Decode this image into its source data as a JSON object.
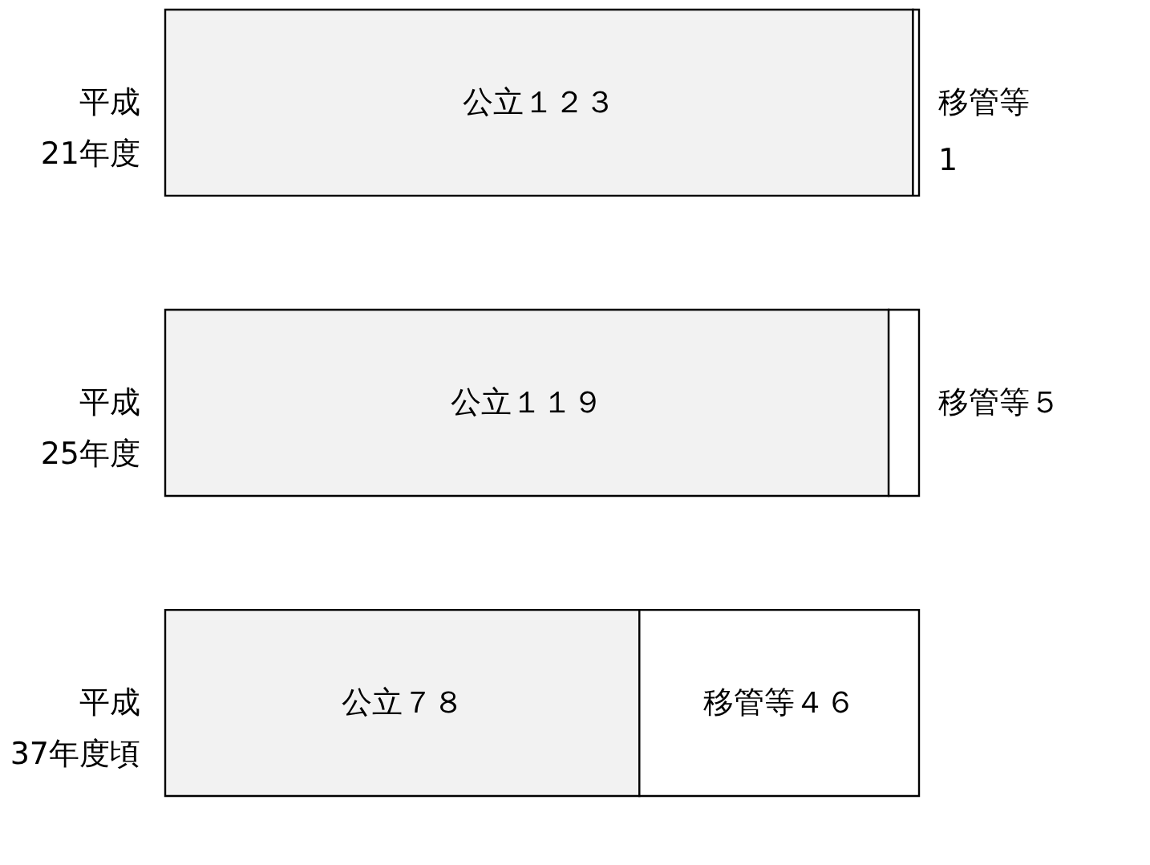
{
  "chart_data": {
    "type": "bar",
    "orientation": "horizontal",
    "stacked": true,
    "categories": [
      "平成\n21年度",
      "平成\n25年度",
      "平成\n37年度頃"
    ],
    "series": [
      {
        "color": "#f2f2f2",
        "values": [
          123,
          119,
          78
        ],
        "value_labels": [
          "公立１２３",
          "公立１１９",
          "公立７８"
        ]
      },
      {
        "color": "#ffffff",
        "values": [
          1,
          5,
          46
        ],
        "value_labels": [
          "移管等\n1",
          "移管等５",
          "移管等４６"
        ]
      }
    ]
  }
}
